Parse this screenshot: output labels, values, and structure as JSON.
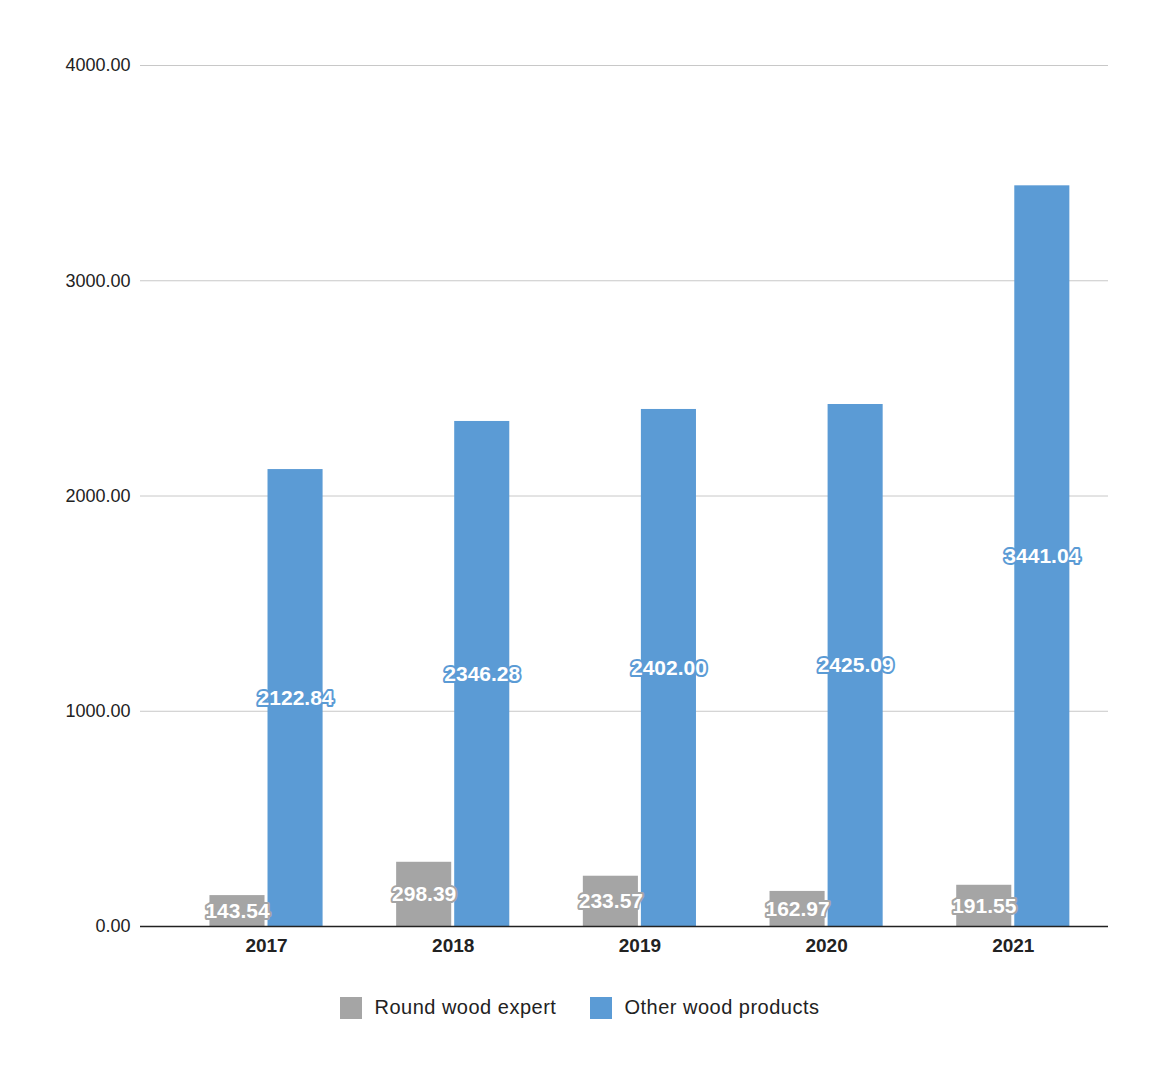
{
  "chart_data": {
    "type": "bar",
    "categories": [
      "2017",
      "2018",
      "2019",
      "2020",
      "2021"
    ],
    "series": [
      {
        "name": "Round wood expert",
        "color": "#a5a5a5",
        "values": [
          143.54,
          298.39,
          233.57,
          162.97,
          191.55
        ],
        "value_labels": [
          "143.54",
          "298.39",
          "233.57",
          "162.97",
          "191.55"
        ]
      },
      {
        "name": "Other wood products",
        "color": "#5b9bd5",
        "values": [
          2122.84,
          2346.28,
          2402.0,
          2425.09,
          3441.04
        ],
        "value_labels": [
          "2122.84",
          "2346.28",
          "2402.00",
          "2425.09",
          "3441.04"
        ]
      }
    ],
    "ylim": [
      0,
      4000
    ],
    "yticks": [
      {
        "value": 0,
        "label": "0.00"
      },
      {
        "value": 1000,
        "label": "1000.00"
      },
      {
        "value": 2000,
        "label": "2000.00"
      },
      {
        "value": 3000,
        "label": "3000.00"
      },
      {
        "value": 4000,
        "label": "4000.00"
      }
    ],
    "grid": true,
    "data_labels": true,
    "legend": "bottom"
  }
}
